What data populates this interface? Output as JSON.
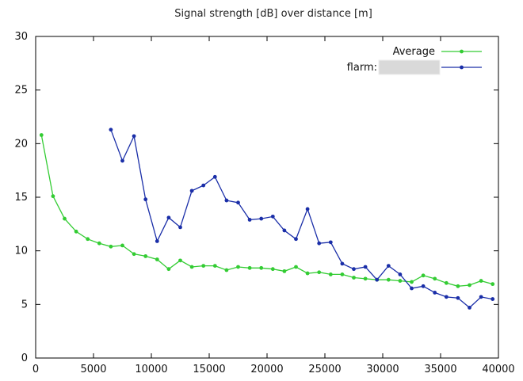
{
  "chart_data": {
    "type": "line",
    "title": "Signal strength [dB] over distance [m]",
    "xlabel": "",
    "ylabel": "",
    "xlim": [
      0,
      40000
    ],
    "ylim": [
      0,
      30
    ],
    "x_ticks": [
      0,
      5000,
      10000,
      15000,
      20000,
      25000,
      30000,
      35000,
      40000
    ],
    "y_ticks": [
      0,
      5,
      10,
      15,
      20,
      25,
      30
    ],
    "grid": false,
    "legend_position": "top-right",
    "series": [
      {
        "name": "Average",
        "color": "#33cc33",
        "x": [
          500,
          1500,
          2500,
          3500,
          4500,
          5500,
          6500,
          7500,
          8500,
          9500,
          10500,
          11500,
          12500,
          13500,
          14500,
          15500,
          16500,
          17500,
          18500,
          19500,
          20500,
          21500,
          22500,
          23500,
          24500,
          25500,
          26500,
          27500,
          28500,
          29500,
          30500,
          31500,
          32500,
          33500,
          34500,
          35500,
          36500,
          37500,
          38500,
          39500
        ],
        "y": [
          20.8,
          15.1,
          13.0,
          11.8,
          11.1,
          10.7,
          10.4,
          10.5,
          9.7,
          9.5,
          9.2,
          8.3,
          9.1,
          8.5,
          8.6,
          8.6,
          8.2,
          8.5,
          8.4,
          8.4,
          8.3,
          8.1,
          8.5,
          7.9,
          8.0,
          7.8,
          7.8,
          7.5,
          7.4,
          7.3,
          7.3,
          7.2,
          7.1,
          7.7,
          7.4,
          7.0,
          6.7,
          6.8,
          7.2,
          6.9
        ]
      },
      {
        "name": "flarm:",
        "color": "#1a2ea8",
        "x": [
          6500,
          7500,
          8500,
          9500,
          10500,
          11500,
          12500,
          13500,
          14500,
          15500,
          16500,
          17500,
          18500,
          19500,
          20500,
          21500,
          22500,
          23500,
          24500,
          25500,
          26500,
          27500,
          28500,
          29500,
          30500,
          31500,
          32500,
          33500,
          34500,
          35500,
          36500,
          37500,
          38500,
          39500
        ],
        "y": [
          21.3,
          18.4,
          20.7,
          14.8,
          10.9,
          13.1,
          12.2,
          15.6,
          16.1,
          16.9,
          14.7,
          14.5,
          12.9,
          13.0,
          13.2,
          11.9,
          11.1,
          13.9,
          10.7,
          10.8,
          8.8,
          8.3,
          8.5,
          7.3,
          8.6,
          7.8,
          6.5,
          6.7,
          6.1,
          5.7,
          5.6,
          4.7,
          5.7,
          5.5
        ]
      }
    ]
  }
}
